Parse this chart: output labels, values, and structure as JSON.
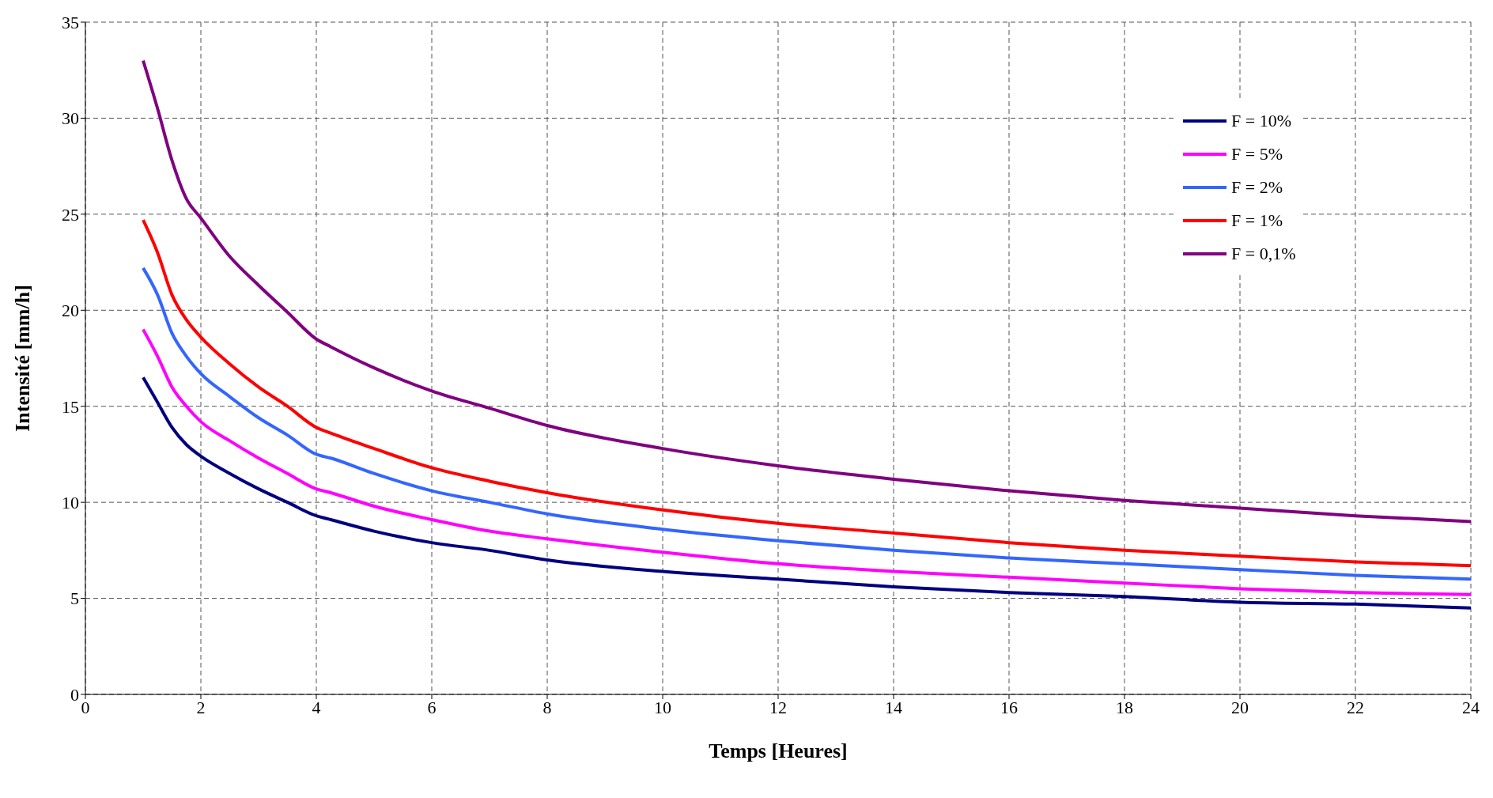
{
  "chart_data": {
    "type": "line",
    "xlabel": "Temps [Heures]",
    "ylabel": "Intensité [mm/h]",
    "x": [
      1,
      1.25,
      1.5,
      1.75,
      2,
      2.5,
      3,
      3.5,
      4,
      4.25,
      5,
      6,
      7,
      8,
      10,
      12,
      14,
      16,
      18,
      20,
      22,
      24
    ],
    "series": [
      {
        "name": "F = 10%",
        "color": "#000080",
        "values": [
          16.5,
          15.2,
          13.9,
          13.0,
          12.4,
          11.5,
          10.7,
          10.0,
          9.3,
          9.1,
          8.5,
          7.9,
          7.5,
          7.0,
          6.4,
          6.0,
          5.6,
          5.3,
          5.1,
          4.8,
          4.7,
          4.5
        ]
      },
      {
        "name": "F = 5%",
        "color": "#ff00ff",
        "values": [
          19.0,
          17.6,
          16.0,
          15.0,
          14.2,
          13.2,
          12.3,
          11.5,
          10.7,
          10.5,
          9.8,
          9.1,
          8.5,
          8.1,
          7.4,
          6.8,
          6.4,
          6.1,
          5.8,
          5.5,
          5.3,
          5.2
        ]
      },
      {
        "name": "F = 2%",
        "color": "#3366ff",
        "values": [
          22.2,
          20.8,
          18.8,
          17.6,
          16.7,
          15.5,
          14.4,
          13.5,
          12.5,
          12.3,
          11.5,
          10.6,
          10.0,
          9.4,
          8.6,
          8.0,
          7.5,
          7.1,
          6.8,
          6.5,
          6.2,
          6.0
        ]
      },
      {
        "name": "F = 1%",
        "color": "#ff0000",
        "values": [
          24.7,
          23.0,
          20.8,
          19.5,
          18.6,
          17.2,
          16.0,
          15.0,
          13.9,
          13.6,
          12.8,
          11.8,
          11.1,
          10.5,
          9.6,
          8.9,
          8.4,
          7.9,
          7.5,
          7.2,
          6.9,
          6.7
        ]
      },
      {
        "name": "F = 0,1%",
        "color": "#800080",
        "values": [
          33.0,
          30.5,
          27.8,
          25.8,
          24.8,
          22.8,
          21.3,
          19.9,
          18.5,
          18.1,
          17.0,
          15.8,
          14.9,
          14.0,
          12.8,
          11.9,
          11.2,
          10.6,
          10.1,
          9.7,
          9.3,
          9.0
        ]
      }
    ],
    "xlim": [
      0,
      24
    ],
    "xticks": [
      0,
      2,
      4,
      6,
      8,
      10,
      12,
      14,
      16,
      18,
      20,
      22,
      24
    ],
    "ylim": [
      0,
      35
    ],
    "yticks": [
      0,
      5,
      10,
      15,
      20,
      25,
      30,
      35
    ],
    "grid": true,
    "legend": "top right",
    "marker": "none",
    "line_style": "solid"
  }
}
